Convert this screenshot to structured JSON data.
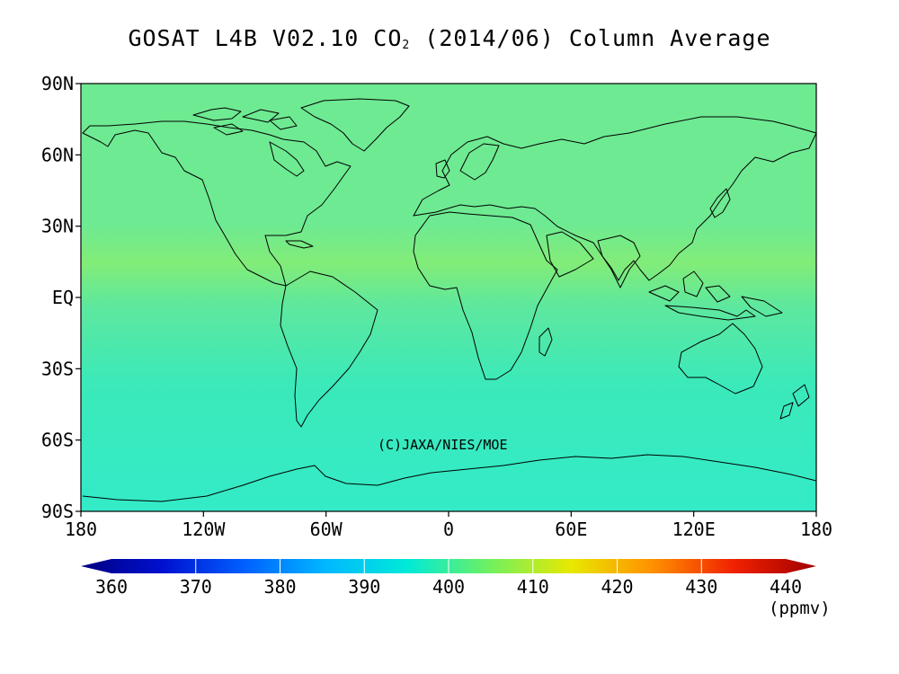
{
  "title": {
    "main": "GOSAT L4B V02.10 CO",
    "sub": "2",
    "suffix": " (2014/06) Column Average"
  },
  "map": {
    "y_ticks": [
      "90N",
      "60N",
      "30N",
      "EQ",
      "30S",
      "60S",
      "90S"
    ],
    "x_ticks": [
      "180",
      "120W",
      "60W",
      "0",
      "60E",
      "120E",
      "180"
    ],
    "lat_range": [
      -90,
      90
    ],
    "lon_range": [
      -180,
      180
    ],
    "copyright": "(C)JAXA/NIES/MOE",
    "field_colors": {
      "north_band": "#6EEA92",
      "tropics_band": "#82EC78",
      "equator": "#5EE89E",
      "south_band": "#3BE9B9",
      "polar_south": "#33EBC8"
    },
    "coastline_color": "#000000"
  },
  "colorbar": {
    "labels": [
      "360",
      "370",
      "380",
      "390",
      "400",
      "410",
      "420",
      "430",
      "440"
    ],
    "unit": "(ppmv)",
    "range": [
      360,
      440
    ],
    "colors": [
      "#000080",
      "#0010D0",
      "#0060FF",
      "#00B8FF",
      "#00EAD8",
      "#70F060",
      "#E8E800",
      "#FF9000",
      "#F02000",
      "#A00000"
    ]
  }
}
